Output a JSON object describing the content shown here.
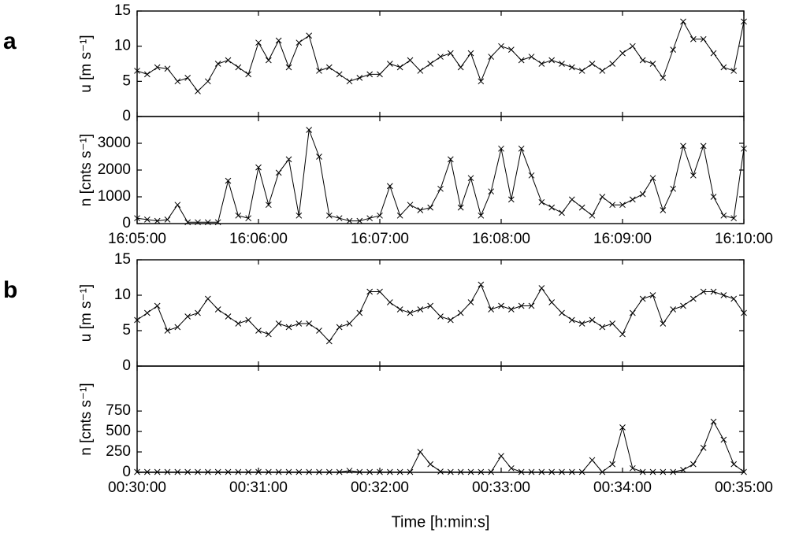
{
  "chart_data": [
    {
      "type": "line",
      "panel_label": "a",
      "ylabel": "u [m s⁻¹]",
      "color": "#000000",
      "xlim": [
        0,
        300
      ],
      "ylim": [
        0,
        15
      ],
      "yticks": [
        0,
        5,
        10,
        15
      ],
      "x": [
        0,
        5,
        10,
        15,
        20,
        25,
        30,
        35,
        40,
        45,
        50,
        55,
        60,
        65,
        70,
        75,
        80,
        85,
        90,
        95,
        100,
        105,
        110,
        115,
        120,
        125,
        130,
        135,
        140,
        145,
        150,
        155,
        160,
        165,
        170,
        175,
        180,
        185,
        190,
        195,
        200,
        205,
        210,
        215,
        220,
        225,
        230,
        235,
        240,
        245,
        250,
        255,
        260,
        265,
        270,
        275,
        280,
        285,
        290,
        295,
        300
      ],
      "values": [
        6.5,
        6,
        7,
        6.8,
        5,
        5.5,
        3.6,
        5,
        7.5,
        8,
        7,
        6,
        10.5,
        8,
        10.8,
        7,
        10.5,
        11.5,
        6.5,
        7,
        6,
        5,
        5.5,
        6,
        6,
        7.5,
        7,
        8,
        6.5,
        7.5,
        8.5,
        9,
        7,
        9,
        5,
        8.5,
        10,
        9.5,
        8,
        8.5,
        7.5,
        8,
        7.5,
        7,
        6.5,
        7.5,
        6.5,
        7.5,
        9,
        10,
        8,
        7.5,
        5.5,
        9.5,
        13.5,
        11,
        11,
        9,
        7,
        6.5,
        13.5
      ]
    },
    {
      "type": "line",
      "ylabel": "n [cnts s⁻¹]",
      "color": "#000000",
      "xlim": [
        0,
        300
      ],
      "ylim": [
        0,
        4000
      ],
      "yticks": [
        0,
        1000,
        2000,
        3000
      ],
      "xticks": [
        {
          "value": 0,
          "label": "16:05:00"
        },
        {
          "value": 60,
          "label": "16:06:00"
        },
        {
          "value": 120,
          "label": "16:07:00"
        },
        {
          "value": 180,
          "label": "16:08:00"
        },
        {
          "value": 240,
          "label": "16:09:00"
        },
        {
          "value": 300,
          "label": "16:10:00"
        }
      ],
      "x": [
        0,
        5,
        10,
        15,
        20,
        25,
        30,
        35,
        40,
        45,
        50,
        55,
        60,
        65,
        70,
        75,
        80,
        85,
        90,
        95,
        100,
        105,
        110,
        115,
        120,
        125,
        130,
        135,
        140,
        145,
        150,
        155,
        160,
        165,
        170,
        175,
        180,
        185,
        190,
        195,
        200,
        205,
        210,
        215,
        220,
        225,
        230,
        235,
        240,
        245,
        250,
        255,
        260,
        265,
        270,
        275,
        280,
        285,
        290,
        295,
        300
      ],
      "values": [
        200,
        150,
        100,
        150,
        700,
        50,
        50,
        50,
        50,
        1600,
        300,
        200,
        2100,
        700,
        1900,
        2400,
        300,
        3500,
        2500,
        300,
        200,
        100,
        100,
        200,
        300,
        1400,
        300,
        700,
        500,
        600,
        1300,
        2400,
        600,
        1700,
        300,
        1200,
        2800,
        900,
        2800,
        1800,
        800,
        600,
        400,
        900,
        600,
        300,
        1000,
        700,
        700,
        900,
        1100,
        1700,
        500,
        1300,
        2900,
        1800,
        2900,
        1000,
        300,
        200,
        2800
      ]
    },
    {
      "type": "line",
      "panel_label": "b",
      "ylabel": "u [m s⁻¹]",
      "color": "#000000",
      "xlim": [
        0,
        300
      ],
      "ylim": [
        0,
        15
      ],
      "yticks": [
        0,
        5,
        10,
        15
      ],
      "x": [
        0,
        5,
        10,
        15,
        20,
        25,
        30,
        35,
        40,
        45,
        50,
        55,
        60,
        65,
        70,
        75,
        80,
        85,
        90,
        95,
        100,
        105,
        110,
        115,
        120,
        125,
        130,
        135,
        140,
        145,
        150,
        155,
        160,
        165,
        170,
        175,
        180,
        185,
        190,
        195,
        200,
        205,
        210,
        215,
        220,
        225,
        230,
        235,
        240,
        245,
        250,
        255,
        260,
        265,
        270,
        275,
        280,
        285,
        290,
        295,
        300
      ],
      "values": [
        6.5,
        7.5,
        8.5,
        5,
        5.5,
        7,
        7.5,
        9.5,
        8,
        7,
        6,
        6.5,
        5,
        4.5,
        6,
        5.5,
        6,
        6,
        5,
        3.5,
        5.5,
        6,
        7.5,
        10.5,
        10.5,
        9,
        8,
        7.5,
        8,
        8.5,
        7,
        6.5,
        7.5,
        9,
        11.5,
        8,
        8.5,
        8,
        8.5,
        8.5,
        11,
        9,
        7.5,
        6.5,
        6,
        6.5,
        5.5,
        6,
        4.5,
        7.5,
        9.5,
        10,
        6,
        8,
        8.5,
        9.5,
        10.5,
        10.5,
        10,
        9.5,
        7.5
      ]
    },
    {
      "type": "line",
      "ylabel": "n [cnts s⁻¹]",
      "xlabel": "Time [h:min:s]",
      "color": "#000000",
      "xlim": [
        0,
        300
      ],
      "ylim": [
        0,
        1300
      ],
      "yticks": [
        0,
        250,
        500,
        750
      ],
      "xticks": [
        {
          "value": 0,
          "label": "00:30:00"
        },
        {
          "value": 60,
          "label": "00:31:00"
        },
        {
          "value": 120,
          "label": "00:32:00"
        },
        {
          "value": 180,
          "label": "00:33:00"
        },
        {
          "value": 240,
          "label": "00:34:00"
        },
        {
          "value": 300,
          "label": "00:35:00"
        }
      ],
      "x": [
        0,
        5,
        10,
        15,
        20,
        25,
        30,
        35,
        40,
        45,
        50,
        55,
        60,
        65,
        70,
        75,
        80,
        85,
        90,
        95,
        100,
        105,
        110,
        115,
        120,
        125,
        130,
        135,
        140,
        145,
        150,
        155,
        160,
        165,
        170,
        175,
        180,
        185,
        190,
        195,
        200,
        205,
        210,
        215,
        220,
        225,
        230,
        235,
        240,
        245,
        250,
        255,
        260,
        265,
        270,
        275,
        280,
        285,
        290,
        295,
        300
      ],
      "values": [
        5,
        5,
        5,
        5,
        5,
        5,
        5,
        5,
        5,
        5,
        5,
        5,
        5,
        5,
        5,
        5,
        5,
        5,
        5,
        5,
        5,
        20,
        5,
        5,
        5,
        5,
        5,
        5,
        250,
        100,
        10,
        5,
        5,
        5,
        5,
        5,
        200,
        50,
        5,
        5,
        5,
        5,
        5,
        5,
        5,
        150,
        5,
        100,
        550,
        50,
        5,
        5,
        5,
        5,
        30,
        100,
        300,
        620,
        400,
        100,
        5
      ]
    }
  ]
}
